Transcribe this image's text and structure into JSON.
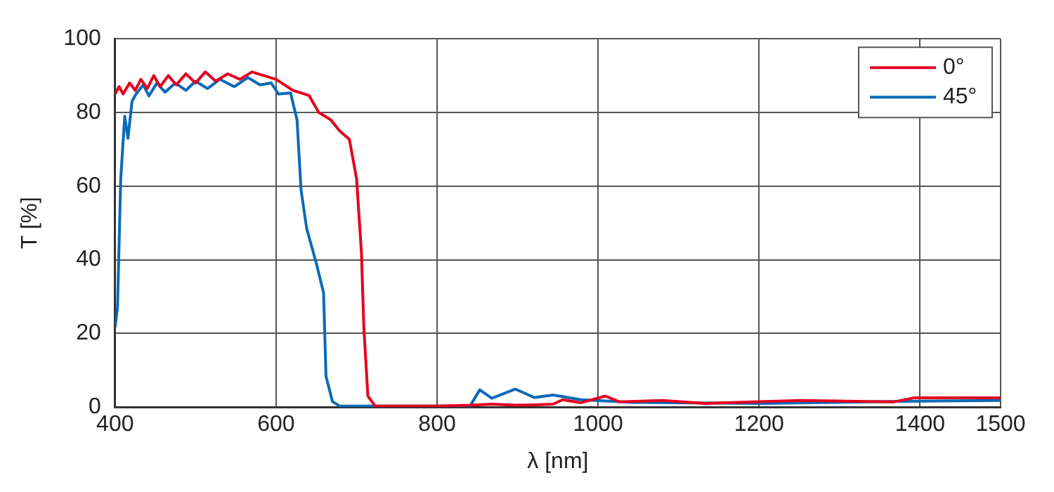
{
  "chart_data": {
    "type": "line",
    "xlabel": "λ [nm]",
    "ylabel": "T [%]",
    "xlim": [
      400,
      1500
    ],
    "xticks": [
      400,
      600,
      800,
      1000,
      1200,
      1400,
      1500
    ],
    "ylim": [
      0,
      100
    ],
    "yticks": [
      0,
      20,
      40,
      60,
      80,
      100
    ],
    "grid": true,
    "legend": "top right",
    "marker": "none",
    "line_style": "solid",
    "series": [
      {
        "name": "0°",
        "color": "#e5001f",
        "x": [
          400,
          405,
          410,
          418,
          425,
          432,
          440,
          448,
          456,
          466,
          476,
          488,
          500,
          512,
          525,
          540,
          555,
          570,
          585,
          600,
          621,
          641,
          653,
          668,
          679,
          691,
          700,
          706,
          709,
          714,
          723,
          760,
          800,
          841,
          868,
          897,
          921,
          944,
          956,
          979,
          1009,
          1027,
          1080,
          1133,
          1251,
          1367,
          1392,
          1500
        ],
        "values": [
          85,
          87,
          85,
          88,
          86,
          89,
          86.5,
          90,
          87,
          90,
          87.5,
          90.5,
          88,
          91,
          88.5,
          90.5,
          89,
          91,
          90,
          89,
          86,
          84.6,
          80,
          78,
          75,
          72.7,
          62,
          42,
          21.7,
          3,
          0.3,
          0.3,
          0.3,
          0.5,
          0.8,
          0.5,
          0.6,
          0.8,
          2,
          1.2,
          3,
          1.4,
          1.8,
          1,
          1.8,
          1.4,
          2.5,
          2.5
        ]
      },
      {
        "name": "45°",
        "color": "#0a6ab8",
        "x": [
          400,
          403,
          407,
          412,
          416,
          421,
          426,
          435,
          442,
          452,
          462,
          475,
          488,
          500,
          515,
          530,
          548,
          565,
          580,
          594,
          603,
          618,
          626,
          631,
          638,
          650,
          659,
          662,
          670,
          679,
          720,
          800,
          841,
          853,
          868,
          897,
          921,
          944,
          979,
          1044,
          1203,
          1398,
          1500
        ],
        "values": [
          21.7,
          27,
          62,
          79,
          73,
          83,
          85,
          87.5,
          84.5,
          88,
          85.5,
          88,
          86,
          88.5,
          86.5,
          89,
          87,
          89.5,
          87.5,
          88,
          85,
          85.3,
          78,
          59,
          48.5,
          39,
          31,
          8.4,
          1.5,
          0.3,
          0.3,
          0.3,
          0.3,
          4.7,
          2.4,
          4.9,
          2.6,
          3.3,
          2,
          1.3,
          1,
          1.6,
          1.8
        ]
      }
    ]
  }
}
